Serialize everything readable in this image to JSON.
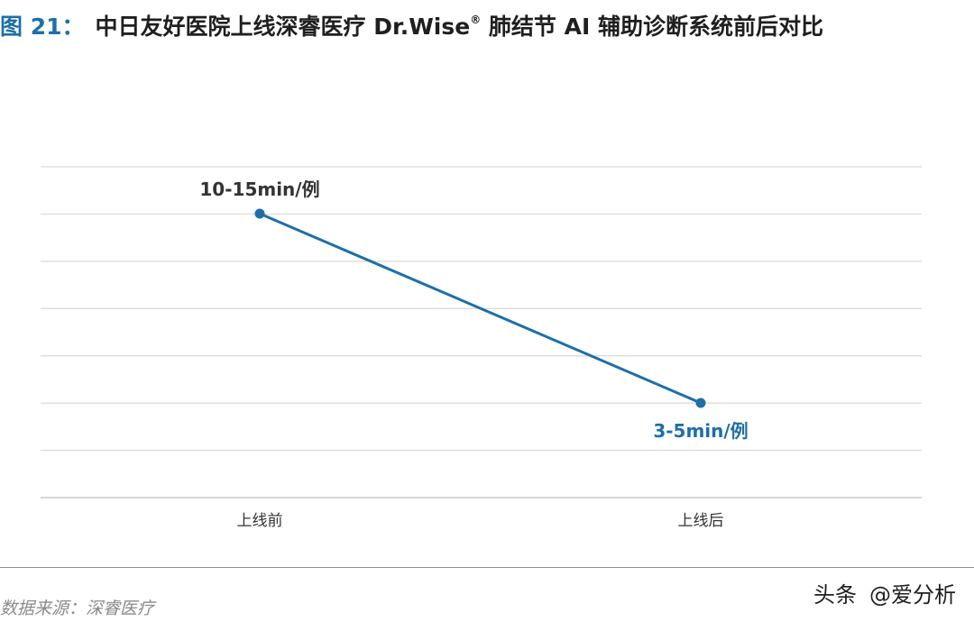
{
  "title": {
    "figure_label": "图 21",
    "separator": "：",
    "main_text": "中日友好医院上线深睿医疗 Dr.Wise",
    "registered_mark": "®",
    "tail_text": " 肺结节 AI 辅助诊断系统前后对比"
  },
  "chart_data": {
    "type": "line",
    "categories": [
      "上线前",
      "上线后"
    ],
    "data_labels": [
      "10-15min/例",
      "3-5min/例"
    ],
    "grid": true,
    "grid_line_count": 8,
    "line_color": "#1e6fa8",
    "first_label_color": "#333333",
    "second_label_color": "#1e6fa8"
  },
  "footer": {
    "source": "数据来源：深睿医疗",
    "watermark_name": "头条",
    "watermark_handle": "@爱分析"
  }
}
